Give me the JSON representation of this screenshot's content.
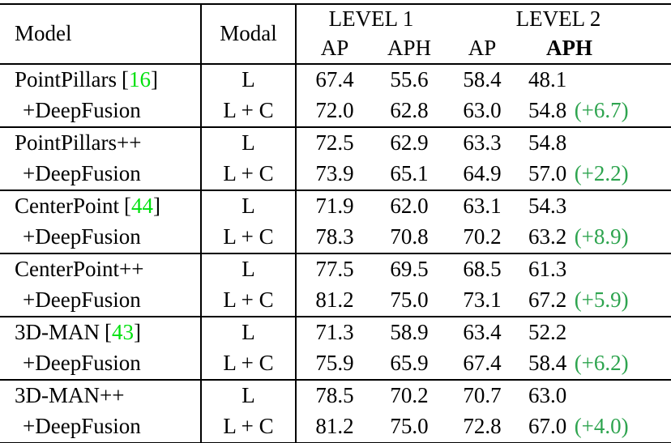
{
  "colors": {
    "citation_green": "#00e10e",
    "delta_green": "#2ea44f",
    "text_black": "#000000"
  },
  "table": {
    "header": {
      "model": "Model",
      "modal": "Modal",
      "level1": "LEVEL 1",
      "level2": "LEVEL 2",
      "ap": "AP",
      "aph": "APH"
    },
    "cite_brackets": {
      "open": "[",
      "close": "]"
    },
    "groups": [
      {
        "rows": [
          {
            "model": "PointPillars",
            "cite": "16",
            "modal": "L",
            "vals": [
              "67.4",
              "55.6",
              "58.4",
              "48.1"
            ],
            "delta": null,
            "indent": false
          },
          {
            "model": "+DeepFusion",
            "cite": null,
            "modal": "L + C",
            "vals": [
              "72.0",
              "62.8",
              "63.0",
              "54.8"
            ],
            "delta": "(+6.7)",
            "indent": true
          }
        ]
      },
      {
        "rows": [
          {
            "model": "PointPillars++",
            "cite": null,
            "modal": "L",
            "vals": [
              "72.5",
              "62.9",
              "63.3",
              "54.8"
            ],
            "delta": null,
            "indent": false
          },
          {
            "model": "+DeepFusion",
            "cite": null,
            "modal": "L + C",
            "vals": [
              "73.9",
              "65.1",
              "64.9",
              "57.0"
            ],
            "delta": "(+2.2)",
            "indent": true
          }
        ]
      },
      {
        "rows": [
          {
            "model": "CenterPoint",
            "cite": "44",
            "modal": "L",
            "vals": [
              "71.9",
              "62.0",
              "63.1",
              "54.3"
            ],
            "delta": null,
            "indent": false
          },
          {
            "model": "+DeepFusion",
            "cite": null,
            "modal": "L + C",
            "vals": [
              "78.3",
              "70.8",
              "70.2",
              "63.2"
            ],
            "delta": "(+8.9)",
            "indent": true
          }
        ]
      },
      {
        "rows": [
          {
            "model": "CenterPoint++",
            "cite": null,
            "modal": "L",
            "vals": [
              "77.5",
              "69.5",
              "68.5",
              "61.3"
            ],
            "delta": null,
            "indent": false
          },
          {
            "model": "+DeepFusion",
            "cite": null,
            "modal": "L + C",
            "vals": [
              "81.2",
              "75.0",
              "73.1",
              "67.2"
            ],
            "delta": "(+5.9)",
            "indent": true
          }
        ]
      },
      {
        "rows": [
          {
            "model": "3D-MAN",
            "cite": "43",
            "modal": "L",
            "vals": [
              "71.3",
              "58.9",
              "63.4",
              "52.2"
            ],
            "delta": null,
            "indent": false
          },
          {
            "model": "+DeepFusion",
            "cite": null,
            "modal": "L + C",
            "vals": [
              "75.9",
              "65.9",
              "67.4",
              "58.4"
            ],
            "delta": "(+6.2)",
            "indent": true
          }
        ]
      },
      {
        "rows": [
          {
            "model": "3D-MAN++",
            "cite": null,
            "modal": "L",
            "vals": [
              "78.5",
              "70.2",
              "70.7",
              "63.0"
            ],
            "delta": null,
            "indent": false
          },
          {
            "model": "+DeepFusion",
            "cite": null,
            "modal": "L + C",
            "vals": [
              "81.2",
              "75.0",
              "72.8",
              "67.0"
            ],
            "delta": "(+4.0)",
            "indent": true
          }
        ]
      }
    ]
  }
}
